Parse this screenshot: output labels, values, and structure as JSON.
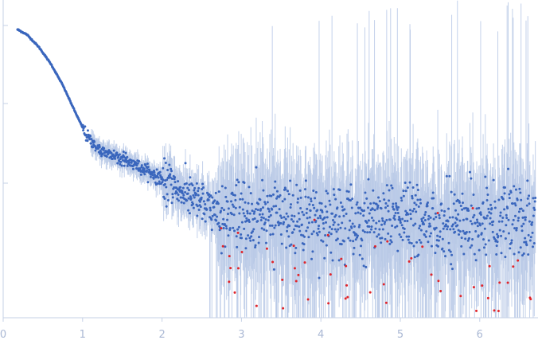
{
  "chart_data": {
    "type": "scatter",
    "title": "",
    "xlabel": "",
    "ylabel": "",
    "y_scale": "log",
    "grid": false,
    "legend": "none",
    "xlim": [
      0,
      6.75
    ],
    "x_ticks": [
      {
        "value": 0,
        "label": "0"
      },
      {
        "value": 1,
        "label": "1"
      },
      {
        "value": 2,
        "label": "2"
      },
      {
        "value": 3,
        "label": "3"
      },
      {
        "value": 4,
        "label": "4"
      },
      {
        "value": 5,
        "label": "5"
      },
      {
        "value": 6,
        "label": "6"
      }
    ],
    "y_tick_count": 3,
    "colors": {
      "points": "#3a66bd",
      "outliers": "#e0252b",
      "error_bars": "#b9c9e6",
      "axis": "#c6d1e6",
      "tick_labels": "#aab8d4"
    },
    "series": [
      {
        "kind": "measured",
        "color": "#3a66bd",
        "trend": [
          {
            "x": 0.18,
            "y": 1.0
          },
          {
            "x": 0.3,
            "y": 0.86
          },
          {
            "x": 0.45,
            "y": 0.6
          },
          {
            "x": 0.6,
            "y": 0.37
          },
          {
            "x": 0.75,
            "y": 0.2
          },
          {
            "x": 0.9,
            "y": 0.095
          },
          {
            "x": 1.05,
            "y": 0.046
          },
          {
            "x": 1.2,
            "y": 0.031
          },
          {
            "x": 1.5,
            "y": 0.024
          },
          {
            "x": 1.8,
            "y": 0.017
          },
          {
            "x": 2.1,
            "y": 0.0115
          },
          {
            "x": 2.4,
            "y": 0.0072
          },
          {
            "x": 2.7,
            "y": 0.0052
          },
          {
            "x": 3.0,
            "y": 0.0044
          },
          {
            "x": 3.5,
            "y": 0.0041
          },
          {
            "x": 4.0,
            "y": 0.004
          },
          {
            "x": 4.5,
            "y": 0.0039
          },
          {
            "x": 5.0,
            "y": 0.0039
          },
          {
            "x": 5.5,
            "y": 0.0038
          },
          {
            "x": 6.0,
            "y": 0.0038
          },
          {
            "x": 6.7,
            "y": 0.0038
          }
        ]
      },
      {
        "kind": "outliers",
        "color": "#e0252b",
        "x_range": [
          2.7,
          6.75
        ]
      }
    ]
  }
}
